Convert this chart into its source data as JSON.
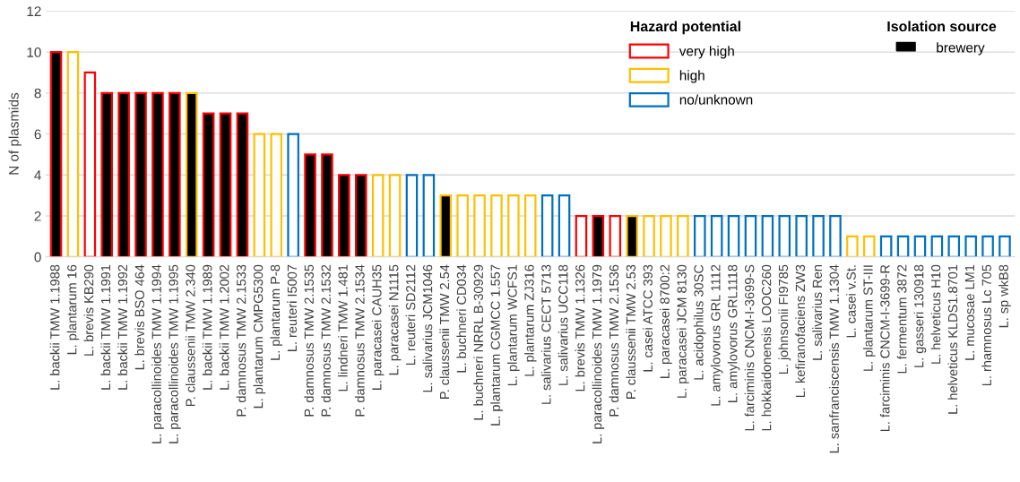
{
  "chart_data": {
    "type": "bar",
    "ylabel": "N of plasmids",
    "categories": [
      "L. backii TMW 1.1988",
      "L. plantarum 16",
      "L. brevis KB290",
      "L. backii TMW 1.1991",
      "L. backii TMW 1.1992",
      "L. brevis BSO 464",
      "L. paracollinoides TMW 1.1994",
      "L. paracollinoides TMW 1.1995",
      "P. claussenii TMW 2.340",
      "L. backii TMW 1.1989",
      "L. backii TMW 1.2002",
      "P. damnosus TMW 2.1533",
      "L. plantarum CMPG5300",
      "L. plantarum P-8",
      "L. reuteri I5007",
      "P. damnosus TMW 2.1535",
      "P. damnosus TMW 2.1532",
      "L. lindneri TMW 1.481",
      "P. damnosus TMW 2.1534",
      "L. paracasei CAUH35",
      "L. paracasei N1115",
      "L. reuteri SD2112",
      "L. salivarius JCM1046",
      "P. claussenii TMW 2.54",
      "L. buchneri CD034",
      "L. buchneri NRRL B-30929",
      "L. plantarum CGMCC 1.557",
      "L. plantarum WCFS1",
      "L. plantarum ZJ316",
      "L. salivarius CECT 5713",
      "L. salivarius UCC118",
      "L. brevis TMW 1.1326",
      "L. paracollinoides TMW 1.1979",
      "P. damnosus TMW 2.1536",
      "P. claussenii TMW 2.53",
      "L. casei ATCC 393",
      "L. paracasei 8700:2",
      "L. paracasei JCM 8130",
      "L. acidophilus 30SC",
      "L. amylovorus GRL 1112",
      "L. amylovorus GRL1118",
      "L. farciminis CNCM-I-3699-S",
      "L. hokkaidonensis LOOC260",
      "L. johnsonii FI9785",
      "L. kefiranofaciens ZW3",
      "L. salivarius Ren",
      "L. sanfranciscensis TMW 1.1304",
      "L. casei v.St.",
      "L. plantarum ST-III",
      "L. farciminis CNCM-I-3699-R",
      "L. fermentum 3872",
      "L. gasseri 130918",
      "L. helveticus H10",
      "L. helveticus KLDS1.8701",
      "L. mucosae LM1",
      "L. rhamnosus Lc 705",
      "L. sp wkB8"
    ],
    "series": [
      {
        "name": "very high",
        "color": "#ff0000",
        "values": [
          10,
          null,
          9,
          8,
          8,
          8,
          8,
          8,
          null,
          7,
          7,
          7,
          null,
          null,
          null,
          5,
          5,
          4,
          4,
          null,
          null,
          null,
          null,
          null,
          null,
          null,
          null,
          null,
          null,
          null,
          null,
          2,
          2,
          2,
          null,
          null,
          null,
          null,
          null,
          null,
          null,
          null,
          null,
          null,
          null,
          null,
          null,
          null,
          null,
          null,
          null,
          null,
          null,
          null,
          null,
          null,
          null
        ],
        "colors": [
          "#000000",
          null,
          "#ffffff",
          "#000000",
          "#000000",
          "#000000",
          "#000000",
          "#000000",
          null,
          "#000000",
          "#000000",
          "#000000",
          null,
          null,
          null,
          "#000000",
          "#000000",
          "#000000",
          "#000000",
          null,
          null,
          null,
          null,
          null,
          null,
          null,
          null,
          null,
          null,
          null,
          null,
          "#ffffff",
          "#000000",
          "#ffffff",
          null,
          null,
          null,
          null,
          null,
          null,
          null,
          null,
          null,
          null,
          null,
          null,
          null,
          null,
          null,
          null,
          null,
          null,
          null,
          null,
          null,
          null,
          null
        ]
      },
      {
        "name": "high",
        "color": "#ffc000",
        "values": [
          null,
          10,
          null,
          null,
          null,
          null,
          null,
          null,
          8,
          null,
          null,
          null,
          6,
          6,
          null,
          null,
          null,
          null,
          null,
          4,
          4,
          null,
          null,
          3,
          3,
          3,
          3,
          3,
          3,
          null,
          null,
          null,
          null,
          null,
          2,
          2,
          2,
          2,
          null,
          null,
          null,
          null,
          null,
          null,
          null,
          null,
          null,
          1,
          1,
          null,
          null,
          null,
          null,
          null,
          null,
          null,
          null
        ],
        "colors": [
          null,
          "#ffffff",
          null,
          null,
          null,
          null,
          null,
          null,
          "#000000",
          null,
          null,
          null,
          "#ffffff",
          "#ffffff",
          null,
          null,
          null,
          null,
          null,
          "#ffffff",
          "#ffffff",
          null,
          null,
          "#000000",
          "#ffffff",
          "#ffffff",
          "#ffffff",
          "#ffffff",
          "#ffffff",
          null,
          null,
          null,
          null,
          null,
          "#000000",
          "#ffffff",
          "#ffffff",
          "#ffffff",
          null,
          null,
          null,
          null,
          null,
          null,
          null,
          null,
          null,
          "#ffffff",
          "#ffffff",
          null,
          null,
          null,
          null,
          null,
          null,
          null,
          null
        ]
      },
      {
        "name": "no/unknown",
        "color": "#0070c0",
        "values": [
          null,
          null,
          null,
          null,
          null,
          null,
          null,
          null,
          null,
          null,
          null,
          null,
          null,
          null,
          6,
          null,
          null,
          null,
          null,
          null,
          null,
          4,
          4,
          null,
          null,
          null,
          null,
          null,
          null,
          3,
          3,
          null,
          null,
          null,
          null,
          null,
          null,
          null,
          2,
          2,
          2,
          2,
          2,
          2,
          2,
          2,
          2,
          null,
          null,
          1,
          1,
          1,
          1,
          1,
          1,
          1,
          1
        ]
      }
    ],
    "legend_title": "Hazard potential",
    "annotations": [
      "Isolation source",
      "brewery"
    ],
    "ylim": [
      0,
      12
    ],
    "yticks": [
      0,
      2,
      4,
      6,
      8,
      10,
      12
    ],
    "grid": "y",
    "legend": "top right"
  }
}
